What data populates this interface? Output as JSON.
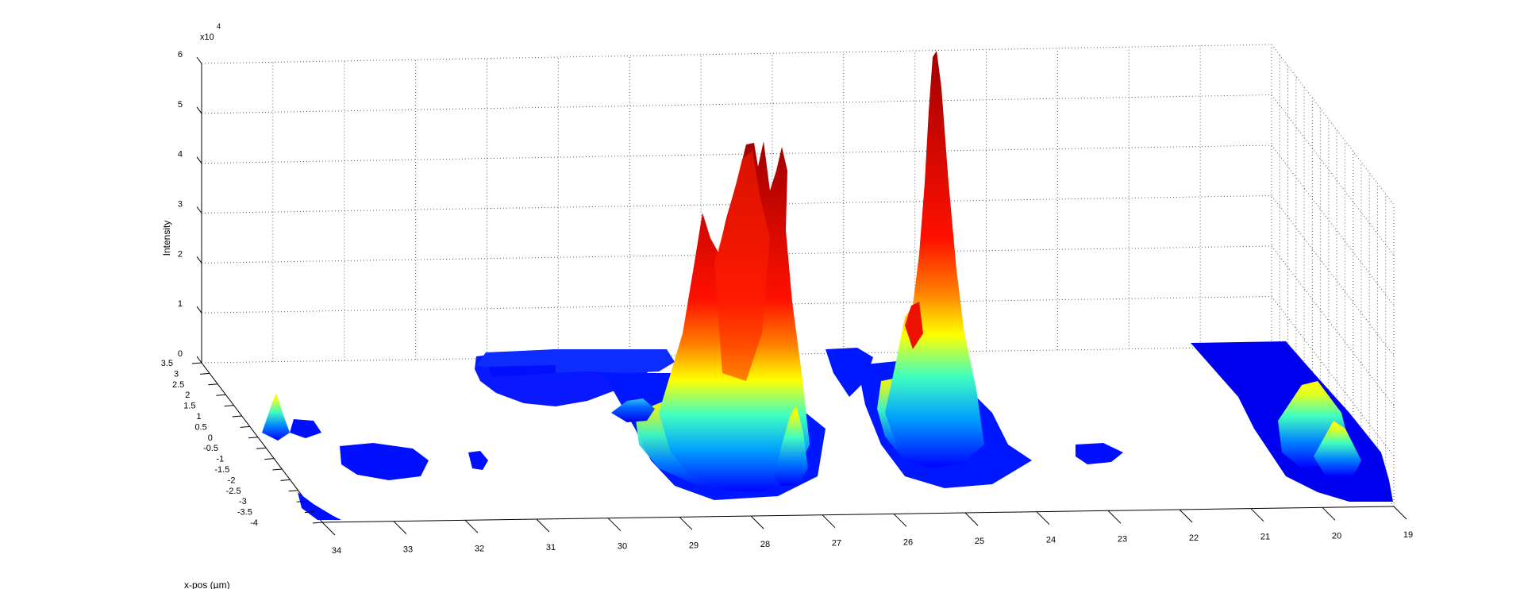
{
  "chart_data": {
    "type": "surface",
    "title": "",
    "xlabel": "x-pos (µm)",
    "ylabel": "",
    "zlabel": "Intensity",
    "z_exponent_label": "x10",
    "z_exponent": "4",
    "x_ticks": [
      "34",
      "33",
      "32",
      "31",
      "30",
      "29",
      "28",
      "27",
      "26",
      "25",
      "24",
      "23",
      "22",
      "21",
      "20",
      "19"
    ],
    "y_ticks": [
      "3.5",
      "3",
      "2.5",
      "2",
      "1.5",
      "1",
      "0.5",
      "0",
      "-0.5",
      "-1",
      "-1.5",
      "-2",
      "-2.5",
      "-3",
      "-3.5",
      "-4"
    ],
    "z_ticks": [
      "0",
      "1",
      "2",
      "3",
      "4",
      "5",
      "6"
    ],
    "xlim": [
      19,
      34
    ],
    "ylim": [
      -4,
      3.5
    ],
    "zlim": [
      0,
      6
    ],
    "colormap": "jet",
    "grid": true,
    "peaks": [
      {
        "x": 28.2,
        "y": 0.5,
        "z": 5.2
      },
      {
        "x": 27.6,
        "y": 0.8,
        "z": 5.1
      },
      {
        "x": 28.8,
        "y": 1.2,
        "z": 3.7
      },
      {
        "x": 28.0,
        "y": -1.5,
        "z": 1.3
      },
      {
        "x": 25.8,
        "y": 2.2,
        "z": 5.9
      },
      {
        "x": 26.2,
        "y": 1.0,
        "z": 2.0
      },
      {
        "x": 20.5,
        "y": 0.5,
        "z": 1.0
      },
      {
        "x": 20.2,
        "y": -0.5,
        "z": 0.6
      },
      {
        "x": 33.6,
        "y": 0.5,
        "z": 0.7
      }
    ]
  }
}
